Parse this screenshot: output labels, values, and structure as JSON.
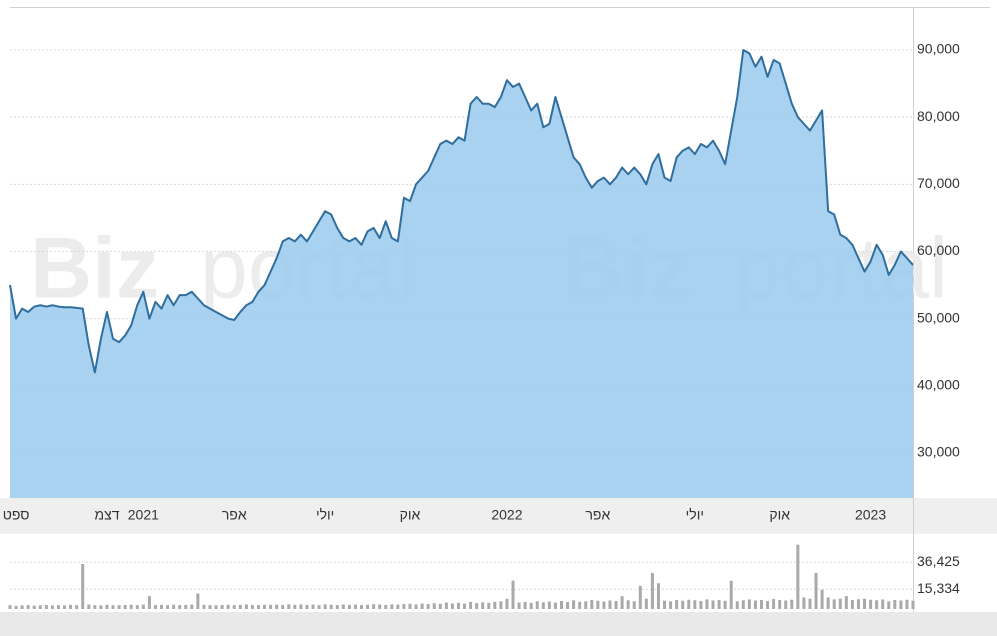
{
  "chart_data": [
    {
      "type": "area",
      "color": "#2f6e9e",
      "fill": "#9fcdee",
      "grid": true,
      "watermark": {
        "bold": "Biz",
        "light": "portal"
      },
      "categories": [
        null,
        "ספט",
        null,
        null,
        null,
        null,
        null,
        null,
        null,
        null,
        null,
        null,
        null,
        null,
        null,
        null,
        "דצמ",
        null,
        null,
        null,
        null,
        null,
        "2021",
        null,
        null,
        null,
        null,
        null,
        null,
        null,
        null,
        null,
        null,
        null,
        null,
        null,
        null,
        "אפר",
        null,
        null,
        null,
        null,
        null,
        null,
        null,
        null,
        null,
        null,
        null,
        null,
        null,
        null,
        "יולי",
        null,
        null,
        null,
        null,
        null,
        null,
        null,
        null,
        null,
        null,
        null,
        null,
        null,
        "אוק",
        null,
        null,
        null,
        null,
        null,
        null,
        null,
        null,
        null,
        null,
        null,
        null,
        null,
        null,
        null,
        "2022",
        null,
        null,
        null,
        null,
        null,
        null,
        null,
        null,
        null,
        null,
        null,
        null,
        null,
        null,
        "אפר",
        null,
        null,
        null,
        null,
        null,
        null,
        null,
        null,
        null,
        null,
        null,
        null,
        null,
        null,
        null,
        "יולי",
        null,
        null,
        null,
        null,
        null,
        null,
        null,
        null,
        null,
        null,
        null,
        null,
        null,
        "אוק",
        null,
        null,
        null,
        null,
        null,
        null,
        null,
        null,
        null,
        null,
        null,
        null,
        null,
        null,
        "2023",
        null,
        null,
        null,
        null,
        null,
        null,
        null
      ],
      "values": [
        55000,
        50000,
        51500,
        51000,
        51800,
        52000,
        51800,
        52000,
        51800,
        51700,
        51700,
        51600,
        51500,
        46000,
        42000,
        47000,
        51000,
        47000,
        46500,
        47500,
        49000,
        52000,
        54000,
        50000,
        52500,
        51500,
        53500,
        52000,
        53500,
        53500,
        54000,
        53000,
        52000,
        51500,
        51000,
        50500,
        50000,
        49800,
        51000,
        52000,
        52500,
        54000,
        55000,
        57000,
        59000,
        61500,
        62000,
        61500,
        62500,
        61500,
        63000,
        64500,
        66000,
        65500,
        63500,
        62000,
        61500,
        62000,
        61000,
        63000,
        63500,
        62000,
        64500,
        62000,
        61500,
        68000,
        67500,
        70000,
        71000,
        72000,
        74000,
        76000,
        76500,
        76000,
        77000,
        76500,
        82000,
        83000,
        82000,
        82000,
        81500,
        83000,
        85500,
        84500,
        85000,
        83000,
        81000,
        82000,
        78500,
        79000,
        83000,
        80000,
        77000,
        74000,
        73000,
        71000,
        69500,
        70500,
        71000,
        70000,
        71000,
        72500,
        71500,
        72500,
        71500,
        70000,
        73000,
        74500,
        71000,
        70500,
        74000,
        75000,
        75500,
        74500,
        76000,
        75500,
        76500,
        75000,
        73000,
        78000,
        83000,
        90000,
        89500,
        87500,
        89000,
        86000,
        88500,
        88000,
        85000,
        82000,
        80000,
        79000,
        78000,
        79500,
        81000,
        66000,
        65500,
        62500,
        62000,
        61000,
        59000,
        57000,
        58500,
        61000,
        59500,
        56500,
        58000,
        60000,
        59000,
        58000
      ],
      "ylim": [
        23300,
        96250
      ],
      "yticks": [
        {
          "value": 30000,
          "label": "30,000"
        },
        {
          "value": 40000,
          "label": "40,000"
        },
        {
          "value": 50000,
          "label": "50,000"
        },
        {
          "value": 60000,
          "label": "60,000"
        },
        {
          "value": 70000,
          "label": "70,000"
        },
        {
          "value": 80000,
          "label": "80,000"
        },
        {
          "value": 90000,
          "label": "90,000"
        }
      ]
    },
    {
      "type": "bar",
      "color": "#a9a9a9",
      "grid": true,
      "values": [
        3000,
        2500,
        2800,
        3000,
        2600,
        2900,
        3100,
        2700,
        3000,
        2800,
        3200,
        3000,
        35000,
        3500,
        3000,
        2800,
        3200,
        2900,
        3000,
        3100,
        3300,
        3000,
        3400,
        10000,
        3000,
        3200,
        2900,
        3300,
        3000,
        3100,
        3400,
        12000,
        3200,
        3000,
        2900,
        3100,
        3300,
        3000,
        3200,
        3500,
        3100,
        3000,
        3300,
        3200,
        3400,
        3100,
        3600,
        3300,
        3500,
        3200,
        3400,
        3000,
        3600,
        3300,
        3100,
        3500,
        3200,
        3400,
        3000,
        3300,
        3700,
        3500,
        3200,
        3600,
        3400,
        3800,
        4000,
        3600,
        4200,
        3800,
        4500,
        4000,
        5000,
        4300,
        4800,
        4200,
        5500,
        4600,
        5200,
        4800,
        5600,
        6000,
        8000,
        22000,
        5000,
        5500,
        4800,
        6000,
        5200,
        5800,
        5000,
        6200,
        5400,
        6800,
        5600,
        6000,
        7000,
        6400,
        5800,
        6600,
        6200,
        10000,
        6800,
        6000,
        18000,
        8000,
        28000,
        20000,
        6500,
        6000,
        7000,
        6400,
        7200,
        6800,
        6200,
        7500,
        6600,
        7000,
        6400,
        22000,
        6000,
        6800,
        7400,
        6600,
        7000,
        6200,
        7800,
        7000,
        6600,
        7200,
        50000,
        9000,
        8000,
        28000,
        15000,
        9000,
        7500,
        8000,
        10000,
        7000,
        7600,
        8000,
        7200,
        6800,
        7400,
        6000,
        7000,
        6600,
        7200,
        6400
      ],
      "ylim": [
        0,
        58300
      ],
      "yticks": [
        {
          "value": 15334,
          "label": "15,334"
        },
        {
          "value": 36425,
          "label": "36,425"
        }
      ]
    }
  ]
}
